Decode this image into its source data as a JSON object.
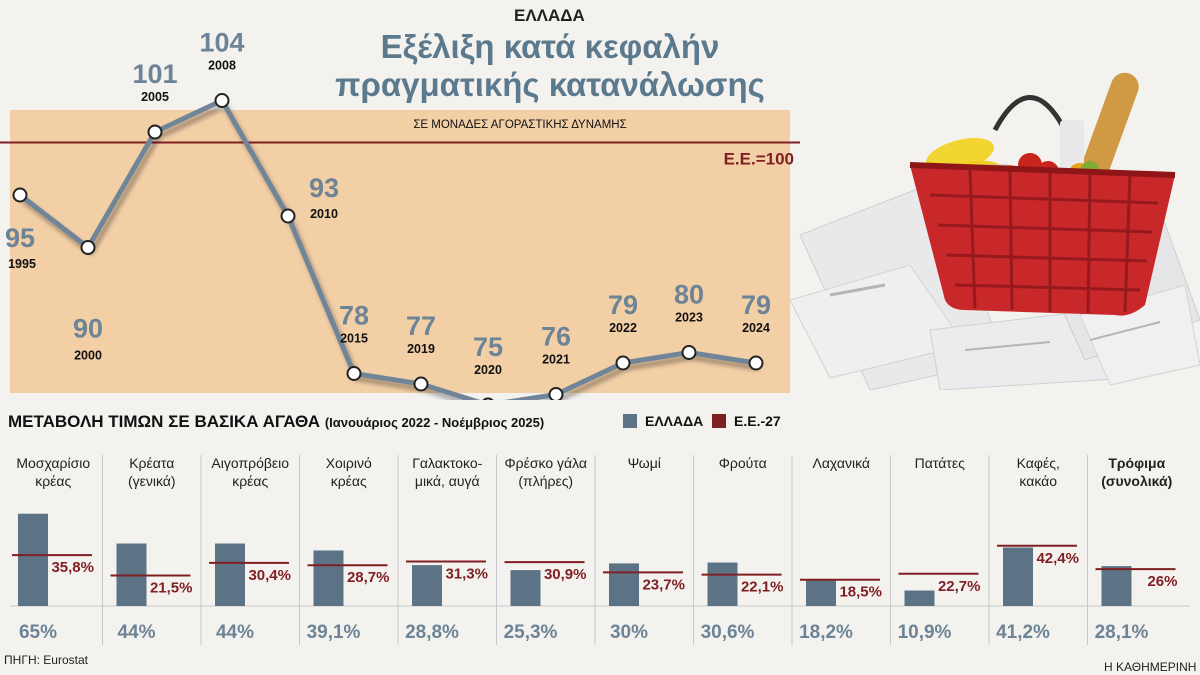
{
  "header": {
    "country": "ΕΛΛΑΔΑ",
    "title_lines": [
      "Εξέλιξη κατά κεφαλήν",
      "πραγματικής κατανάλωσης"
    ]
  },
  "colors": {
    "panel_bg": "#f3cfa6",
    "line": "#6f8598",
    "reference": "#7f1f22",
    "value_text": "#6d8396",
    "greece_bar": "#5c7386",
    "eu_line": "#7f1f22",
    "divider": "#c8c8c8"
  },
  "chart_data": [
    {
      "type": "line",
      "title": "Εξέλιξη κατά κεφαλήν πραγματικής κατανάλωσης",
      "subtitle": "ΣΕ ΜΟΝΑΔΕΣ ΑΓΟΡΑΣΤΙΚΗΣ ΔΥΝΑΜΗΣ",
      "x": [
        "1995",
        "2000",
        "2005",
        "2008",
        "2010",
        "2015",
        "2019",
        "2020",
        "2021",
        "2022",
        "2023",
        "2024"
      ],
      "series": [
        {
          "values": [
            95,
            90,
            101,
            104,
            93,
            78,
            77,
            75,
            76,
            79,
            80,
            79
          ]
        }
      ],
      "reference_line": {
        "value": 100,
        "label": "Ε.Ε.=100"
      },
      "ylim": [
        72,
        107
      ]
    },
    {
      "type": "bar",
      "title": "ΜΕΤΑΒΟΛΗ ΤΙΜΩΝ ΣΕ ΒΑΣΙΚΑ ΑΓΑΘΑ",
      "subtitle": "(Ιανουάριος 2022 - Νοέμβριος 2025)",
      "legend": [
        "ΕΛΛΑΔΑ",
        "Ε.Ε.-27"
      ],
      "legend_position": "top-right",
      "categories": [
        [
          "Μοσχαρίσιο",
          "κρέας"
        ],
        [
          "Κρέατα",
          "(γενικά)"
        ],
        [
          "Αιγοπρόβειο",
          "κρέας"
        ],
        [
          "Χοιρινό",
          "κρέας"
        ],
        [
          "Γαλακτοκο-",
          "μικά, αυγά"
        ],
        [
          "Φρέσκο γάλα",
          "(πλήρες)"
        ],
        [
          "Ψωμί"
        ],
        [
          "Φρούτα"
        ],
        [
          "Λαχανικά"
        ],
        [
          "Πατάτες"
        ],
        [
          "Καφές,",
          "κακάο"
        ],
        [
          "Τρόφιμα",
          "(συνολικά)"
        ]
      ],
      "series": [
        {
          "name": "ΕΛΛΑΔΑ",
          "values": [
            65,
            44,
            44,
            39.1,
            28.8,
            25.3,
            30,
            30.6,
            18.2,
            10.9,
            41.2,
            28.1
          ],
          "labels": [
            "65%",
            "44%",
            "44%",
            "39,1%",
            "28,8%",
            "25,3%",
            "30%",
            "30,6%",
            "18,2%",
            "10,9%",
            "41,2%",
            "28,1%"
          ]
        },
        {
          "name": "Ε.Ε.-27",
          "values": [
            35.8,
            21.5,
            30.4,
            28.7,
            31.3,
            30.9,
            23.7,
            22.1,
            18.5,
            22.7,
            42.4,
            26
          ],
          "labels": [
            "35,8%",
            "21,5%",
            "30,4%",
            "28,7%",
            "31,3%",
            "30,9%",
            "23,7%",
            "22,1%",
            "18,5%",
            "22,7%",
            "42,4%",
            "26%"
          ]
        }
      ],
      "ylim": [
        0,
        70
      ]
    }
  ],
  "footer": {
    "source": "ΠΗΓΗ: Eurostat",
    "publisher": "Η ΚΑΘΗΜΕΡΙΝΗ"
  }
}
